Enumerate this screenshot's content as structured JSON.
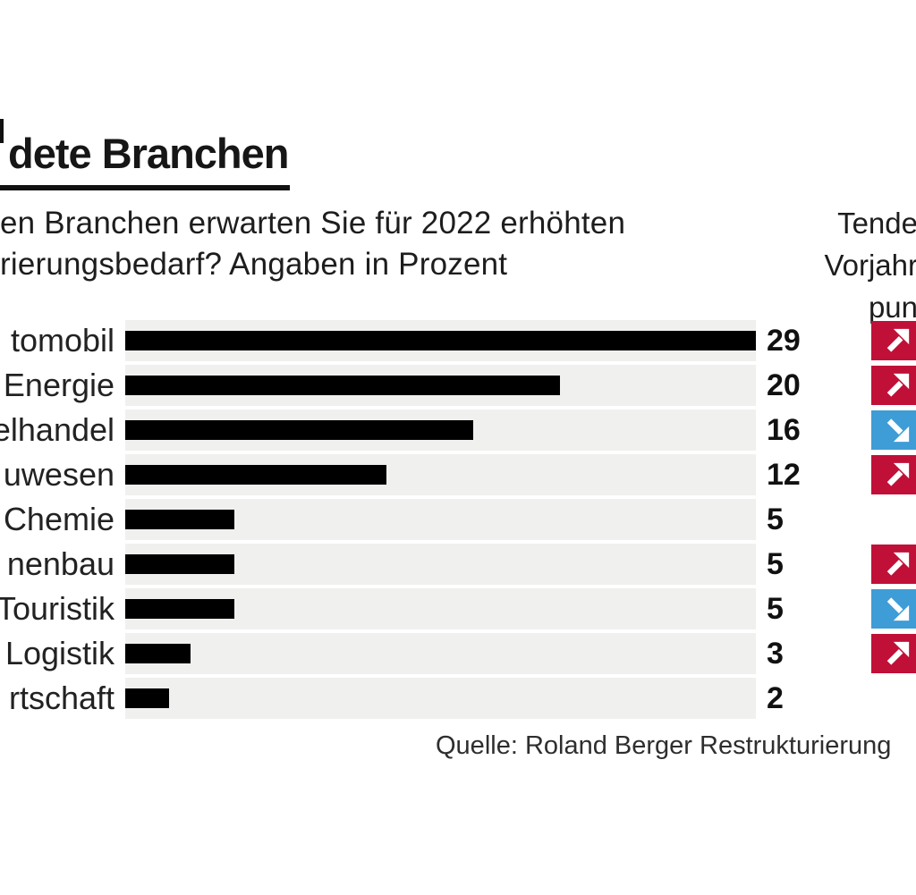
{
  "header": {
    "title_fragment": "dete Branchen",
    "subtitle_line1": "en Branchen erwarten Sie für 2022 erhöhten",
    "subtitle_line2": "rierungsbedarf? Angaben in Prozent"
  },
  "trend_header": {
    "line1": "Tende",
    "line2": "Vorjahr",
    "line3": "pun"
  },
  "source": "Quelle: Roland Berger Restrukturierung",
  "colors": {
    "bar": "#000000",
    "track": "#f0f0ee",
    "trend_up": "#c01038",
    "trend_down": "#3e9cd6",
    "arrow": "#ffffff"
  },
  "chart_data": {
    "type": "bar",
    "orientation": "horizontal",
    "title": "dete Branchen",
    "unit": "Prozent",
    "categories": [
      "tomobil",
      "Energie",
      "elhandel",
      "uwesen",
      "Chemie",
      "nenbau",
      "Touristik",
      "Logistik",
      "rtschaft"
    ],
    "values": [
      29,
      20,
      16,
      12,
      5,
      5,
      5,
      3,
      2
    ],
    "trends": [
      "up",
      "up",
      "down",
      "up",
      null,
      "up",
      "down",
      "up",
      null
    ],
    "xlim": [
      0,
      29
    ],
    "grid": false,
    "legend_position": "right-column"
  }
}
